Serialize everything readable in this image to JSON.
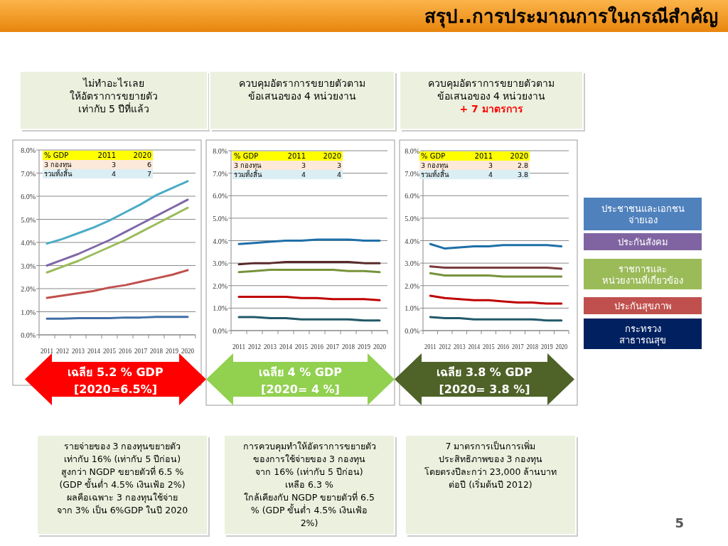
{
  "chart_data": [
    {
      "type": "other",
      "title": "สรุป..การประมาณการในกรณีสำคัญ",
      "annotations": [
        "5"
      ]
    },
    {
      "type": "line",
      "title": "ไม่ทำอะไรเลย\nให้อัตราการขยายตัว\nเท่ากับ 5 ปีที่แล้ว",
      "categories": [
        "2011",
        "2012",
        "2013",
        "2014",
        "2015",
        "2016",
        "2017",
        "2018",
        "2019",
        "2020"
      ],
      "ylim": [
        0,
        8
      ],
      "yticks": [
        {
          "value": 0,
          "label": "0.0%"
        },
        {
          "value": 1,
          "label": "1.0%"
        },
        {
          "value": 2,
          "label": "2.0%"
        },
        {
          "value": 3,
          "label": "3.0%"
        },
        {
          "value": 4,
          "label": "4.0%"
        },
        {
          "value": 5,
          "label": "5.0%"
        },
        {
          "value": 6,
          "label": "6.0%"
        },
        {
          "value": 7,
          "label": "7.0%"
        },
        {
          "value": 8,
          "label": "8.0%"
        }
      ],
      "grid": "y",
      "series": [
        {
          "color": "#4bacc6",
          "values": [
            3.95,
            4.15,
            4.4,
            4.65,
            4.95,
            5.3,
            5.65,
            6.05,
            6.35,
            6.65
          ]
        },
        {
          "color": "#7f68a8",
          "values": [
            3.0,
            3.25,
            3.5,
            3.8,
            4.1,
            4.45,
            4.8,
            5.15,
            5.5,
            5.85
          ]
        },
        {
          "color": "#9bbb59",
          "values": [
            2.7,
            2.95,
            3.2,
            3.5,
            3.8,
            4.1,
            4.45,
            4.8,
            5.15,
            5.5
          ]
        },
        {
          "color": "#c0504d",
          "values": [
            1.6,
            1.7,
            1.8,
            1.9,
            2.05,
            2.15,
            2.3,
            2.45,
            2.6,
            2.8
          ]
        },
        {
          "color": "#3f6ea6",
          "values": [
            0.7,
            0.7,
            0.72,
            0.72,
            0.72,
            0.75,
            0.75,
            0.78,
            0.78,
            0.78
          ]
        }
      ],
      "annotations": [
        "% GDP",
        "2011",
        "2020",
        "3 กองทุน",
        "3",
        "6",
        "รวมทั้งสิ้น",
        "4",
        "7",
        "เฉลีย 5.2 % GDP\n[2020=6.5%]",
        "รายจ่ายของ 3 กองทุนขยายตัว\nเท่ากับ 16% (เท่ากับ 5 ปีก่อน)\nสูงกว่า NGDP ขยายตัวที่ 6.5 %\n(GDP ขั้นต่ำ 4.5% เงินเฟ้อ 2%)\nผลคือเฉพาะ 3 กองทุนใช้จ่าย\nจาก 3% เป็น 6%GDP ในปี 2020"
      ]
    },
    {
      "type": "line",
      "title": "ควบคุมอัตราการขยายตัวตาม\nข้อเสนอของ 4 หน่วยงาน",
      "categories": [
        "2011",
        "2012",
        "2013",
        "2014",
        "2015",
        "2016",
        "2017",
        "2018",
        "2019",
        "2020"
      ],
      "ylim": [
        0,
        8
      ],
      "yticks": [
        {
          "value": 0,
          "label": "0.0%"
        },
        {
          "value": 1,
          "label": "1.0%"
        },
        {
          "value": 2,
          "label": "2.0%"
        },
        {
          "value": 3,
          "label": "3.0%"
        },
        {
          "value": 4,
          "label": "4.0%"
        },
        {
          "value": 5,
          "label": "5.0%"
        },
        {
          "value": 6,
          "label": "6.0%"
        },
        {
          "value": 7,
          "label": "7.0%"
        },
        {
          "value": 8,
          "label": "8.0%"
        }
      ],
      "grid": "y",
      "series": [
        {
          "color": "#1f6fa8",
          "values": [
            3.85,
            3.9,
            3.95,
            4.0,
            4.0,
            4.05,
            4.05,
            4.05,
            4.0,
            4.0
          ]
        },
        {
          "color": "#5a2a2a",
          "values": [
            2.95,
            3.0,
            3.0,
            3.05,
            3.05,
            3.05,
            3.05,
            3.05,
            3.0,
            3.0
          ]
        },
        {
          "color": "#77933c",
          "values": [
            2.6,
            2.65,
            2.7,
            2.7,
            2.7,
            2.7,
            2.7,
            2.65,
            2.65,
            2.6
          ]
        },
        {
          "color": "#c00000",
          "values": [
            1.5,
            1.5,
            1.5,
            1.5,
            1.45,
            1.45,
            1.4,
            1.4,
            1.4,
            1.35
          ]
        },
        {
          "color": "#215968",
          "values": [
            0.6,
            0.6,
            0.55,
            0.55,
            0.5,
            0.5,
            0.5,
            0.5,
            0.45,
            0.45
          ]
        }
      ],
      "annotations": [
        "% GDP",
        "2011",
        "2020",
        "3 กองทุน",
        "3",
        "3",
        "รวมทั้งสิ้น",
        "4",
        "4",
        "เฉลีย 4 % GDP\n[2020= 4 %]",
        "การควบคุมทำให้อัตราการขยายตัว\nของการใช้จ่ายของ 3 กองทุน\nจาก 16% (เท่ากับ 5 ปีก่อน)\nเหลือ 6.3 %\nใกล้เคียงกับ NGDP ขยายตัวที่ 6.5\n% (GDP ขั้นต่ำ 4.5% เงินเฟ้อ\n2%)"
      ]
    },
    {
      "type": "line",
      "title": "ควบคุมอัตราการขยายตัวตาม\nข้อเสนอของ 4 หน่วยงาน",
      "subtitle": "+ 7 มาตรการ",
      "categories": [
        "2011",
        "2012",
        "2013",
        "2014",
        "2015",
        "2016",
        "2017",
        "2018",
        "2019",
        "2020"
      ],
      "ylim": [
        0,
        8
      ],
      "yticks": [
        {
          "value": 0,
          "label": "0.0%"
        },
        {
          "value": 1,
          "label": "1.0%"
        },
        {
          "value": 2,
          "label": "2.0%"
        },
        {
          "value": 3,
          "label": "3.0%"
        },
        {
          "value": 4,
          "label": "4.0%"
        },
        {
          "value": 5,
          "label": "5.0%"
        },
        {
          "value": 6,
          "label": "6.0%"
        },
        {
          "value": 7,
          "label": "7.0%"
        },
        {
          "value": 8,
          "label": "8.0%"
        }
      ],
      "grid": "y",
      "series": [
        {
          "color": "#1f6fa8",
          "values": [
            3.85,
            3.65,
            3.7,
            3.75,
            3.75,
            3.8,
            3.8,
            3.8,
            3.8,
            3.75
          ]
        },
        {
          "color": "#7a3b3b",
          "values": [
            2.85,
            2.8,
            2.8,
            2.8,
            2.8,
            2.8,
            2.8,
            2.8,
            2.8,
            2.75
          ]
        },
        {
          "color": "#77933c",
          "values": [
            2.55,
            2.45,
            2.45,
            2.45,
            2.45,
            2.4,
            2.4,
            2.4,
            2.4,
            2.4
          ]
        },
        {
          "color": "#c00000",
          "values": [
            1.55,
            1.45,
            1.4,
            1.35,
            1.35,
            1.3,
            1.25,
            1.25,
            1.2,
            1.2
          ]
        },
        {
          "color": "#215968",
          "values": [
            0.6,
            0.55,
            0.55,
            0.5,
            0.5,
            0.5,
            0.5,
            0.5,
            0.45,
            0.45
          ]
        }
      ],
      "annotations": [
        "% GDP",
        "2011",
        "2020",
        "3 กองทุน",
        "3",
        "2.8",
        "รวมทั้งสิ้น",
        "4",
        "3.8",
        "เฉลีย 3.8 % GDP\n[2020= 3.8 %]",
        "7 มาตรการเป็นการเพิ่ม\nประสิทธิภาพของ 3 กองทุน\nโดยตรงปีละกว่า 23,000 ล้านบาท\nต่อปี (เริ่มต้นปี 2012)"
      ]
    },
    {
      "type": "other",
      "annotations": [
        "ประชาชนและเอกชน\nจ่ายเอง",
        "ประกันสังคม",
        "ราชการและ\nหน่วยงานที่เกี่ยวข้อง",
        "ประกันสุขภาพ",
        "กระทรวง\nสาธารณสุข"
      ],
      "colors": [
        "#4f81bd",
        "#8064a2",
        "#9bbb59",
        "#c0504d",
        "#002060"
      ]
    }
  ]
}
